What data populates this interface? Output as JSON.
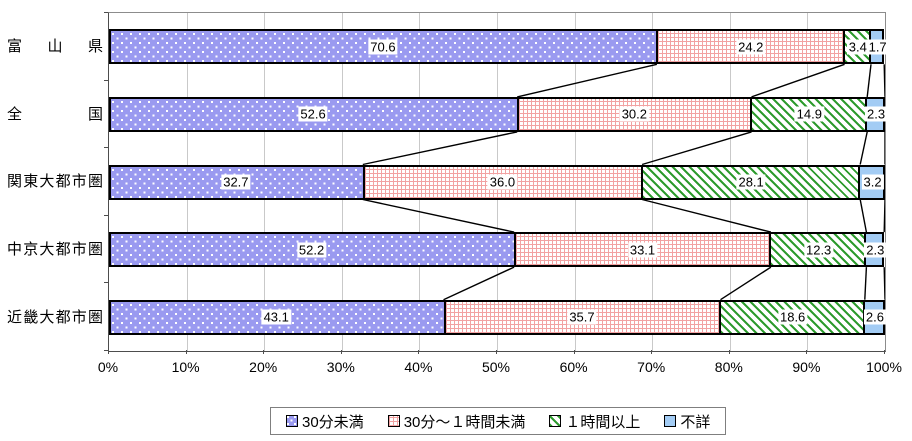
{
  "chart_data": {
    "type": "bar",
    "orientation": "horizontal",
    "stacked": true,
    "unit": "%",
    "categories": [
      "富山県",
      "全国",
      "関東大都市圏",
      "中京大都市圏",
      "近畿大都市圏"
    ],
    "series": [
      {
        "name": "30分未満",
        "pattern": "blue-dots",
        "values": [
          70.6,
          52.6,
          32.7,
          52.2,
          43.1
        ]
      },
      {
        "name": "30分～１時間未満",
        "pattern": "pink-grid",
        "values": [
          24.2,
          30.2,
          36.0,
          33.1,
          35.7
        ]
      },
      {
        "name": "１時間以上",
        "pattern": "green-diag",
        "values": [
          3.4,
          14.9,
          28.1,
          12.3,
          18.6
        ]
      },
      {
        "name": "不詳",
        "pattern": "lightblue",
        "values": [
          1.7,
          2.3,
          3.2,
          2.3,
          2.6
        ]
      }
    ],
    "x_axis": {
      "min": 0,
      "max": 100,
      "tick_step": 10,
      "tick_labels": [
        "0%",
        "10%",
        "20%",
        "30%",
        "40%",
        "50%",
        "60%",
        "70%",
        "80%",
        "90%",
        "100%"
      ]
    },
    "grid": true,
    "series_lines": true,
    "legend_position": "bottom",
    "value_label_decimals": 1,
    "colors": {
      "blue_fill": "#9a9af0",
      "pink_line": "#f2a2a2",
      "green_line": "#2e9b2e",
      "lightblue_fill": "#a3ccf4",
      "bar_border": "#000000",
      "gridline": "#c9c9c9",
      "plot_border": "#8c8c8c",
      "axis": "#4d4d4d"
    }
  }
}
